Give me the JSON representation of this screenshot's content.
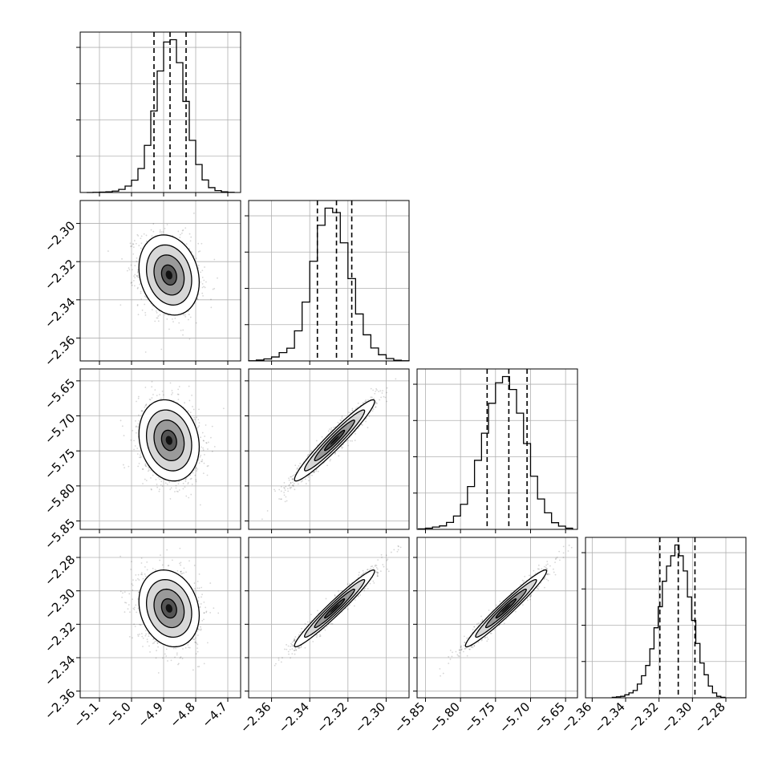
{
  "chart_data": {
    "type": "corner",
    "title": "",
    "variables": [
      {
        "range": [
          -5.16,
          -4.66
        ],
        "ticks": [
          -5.1,
          -5.0,
          -4.9,
          -4.8,
          -4.7
        ],
        "tick_labels": [
          "−5.1",
          "−5.0",
          "−4.9",
          "−4.8",
          "−4.7"
        ],
        "quantiles": [
          -4.93,
          -4.88,
          -4.83
        ],
        "histogram": {
          "edges": [
            -5.14,
            -5.12,
            -5.1,
            -5.08,
            -5.06,
            -5.04,
            -5.02,
            -5.0,
            -4.98,
            -4.96,
            -4.94,
            -4.92,
            -4.9,
            -4.88,
            -4.86,
            -4.84,
            -4.82,
            -4.8,
            -4.78,
            -4.76,
            -4.74,
            -4.72,
            -4.7,
            -4.68
          ],
          "counts": [
            0,
            1,
            2,
            4,
            8,
            18,
            37,
            71,
            138,
            271,
            469,
            699,
            866,
            879,
            747,
            524,
            300,
            161,
            72,
            28,
            11,
            4,
            1
          ]
        }
      },
      {
        "range": [
          -2.372,
          -2.288
        ],
        "ticks": [
          -2.36,
          -2.34,
          -2.32,
          -2.3
        ],
        "tick_labels": [
          "−2.36",
          "−2.34",
          "−2.32",
          "−2.30"
        ],
        "quantiles": [
          -2.336,
          -2.326,
          -2.318
        ],
        "histogram": {
          "edges": [
            -2.372,
            -2.368,
            -2.364,
            -2.36,
            -2.356,
            -2.352,
            -2.348,
            -2.344,
            -2.34,
            -2.336,
            -2.332,
            -2.328,
            -2.324,
            -2.32,
            -2.316,
            -2.312,
            -2.308,
            -2.304,
            -2.3,
            -2.296,
            -2.292,
            -2.288
          ],
          "counts": [
            1,
            4,
            9,
            18,
            38,
            58,
            137,
            268,
            454,
            618,
            696,
            676,
            538,
            375,
            214,
            119,
            59,
            28,
            11,
            3,
            1
          ]
        }
      },
      {
        "range": [
          -5.862,
          -5.633
        ],
        "ticks": [
          -5.85,
          -5.8,
          -5.75,
          -5.7,
          -5.65
        ],
        "tick_labels": [
          "−5.85",
          "−5.80",
          "−5.75",
          "−5.70",
          "−5.65"
        ],
        "quantiles": [
          -5.762,
          -5.731,
          -5.705
        ],
        "histogram": {
          "edges": [
            -5.86,
            -5.85,
            -5.84,
            -5.83,
            -5.82,
            -5.81,
            -5.8,
            -5.79,
            -5.78,
            -5.77,
            -5.76,
            -5.75,
            -5.74,
            -5.73,
            -5.72,
            -5.71,
            -5.7,
            -5.69,
            -5.68,
            -5.67,
            -5.66,
            -5.65,
            -5.64
          ],
          "counts": [
            2,
            5,
            10,
            15,
            30,
            58,
            109,
            186,
            300,
            418,
            548,
            637,
            664,
            608,
            505,
            373,
            231,
            132,
            72,
            29,
            14,
            5
          ]
        }
      },
      {
        "range": [
          -2.364,
          -2.268
        ],
        "ticks": [
          -2.36,
          -2.34,
          -2.32,
          -2.3,
          -2.28
        ],
        "tick_labels": [
          "−2.36",
          "−2.34",
          "−2.32",
          "−2.30",
          "−2.28"
        ],
        "quantiles": [
          -2.3195,
          -2.3085,
          -2.2985
        ],
        "histogram": {
          "edges": [
            -2.348,
            -2.3455,
            -2.343,
            -2.3405,
            -2.338,
            -2.3355,
            -2.333,
            -2.3305,
            -2.328,
            -2.3255,
            -2.323,
            -2.3205,
            -2.318,
            -2.3155,
            -2.313,
            -2.3105,
            -2.308,
            -2.3055,
            -2.303,
            -2.3005,
            -2.298,
            -2.2955,
            -2.293,
            -2.2905,
            -2.288,
            -2.2855,
            -2.283,
            -2.2805
          ],
          "counts": [
            1,
            2,
            3,
            6,
            10,
            15,
            28,
            45,
            66,
            100,
            143,
            186,
            238,
            269,
            290,
            312,
            290,
            259,
            206,
            158,
            111,
            71,
            47,
            24,
            10,
            3,
            1
          ]
        }
      }
    ],
    "pairs": [
      {
        "row": 1,
        "col": 0,
        "mean": [
          -4.883,
          -2.327
        ],
        "sd": [
          0.047,
          0.0105
        ],
        "rho": -0.18
      },
      {
        "row": 2,
        "col": 0,
        "mean": [
          -4.883,
          -5.735
        ],
        "sd": [
          0.047,
          0.029
        ],
        "rho": -0.16
      },
      {
        "row": 2,
        "col": 1,
        "mean": [
          -2.327,
          -5.735
        ],
        "sd": [
          0.0105,
          0.029
        ],
        "rho": 0.96
      },
      {
        "row": 3,
        "col": 0,
        "mean": [
          -4.883,
          -2.3105
        ],
        "sd": [
          0.047,
          0.0115
        ],
        "rho": -0.18
      },
      {
        "row": 3,
        "col": 1,
        "mean": [
          -2.327,
          -2.3105
        ],
        "sd": [
          0.0105,
          0.0115
        ],
        "rho": 0.97
      },
      {
        "row": 3,
        "col": 2,
        "mean": [
          -5.735,
          -2.3105
        ],
        "sd": [
          0.029,
          0.0115
        ],
        "rho": 0.97
      }
    ],
    "contour_levels_sigma": [
      0.5,
      1.0,
      1.5,
      2.0
    ],
    "grid": true,
    "colors": {
      "axis": "#000000",
      "grid": "#b0b0b0",
      "points": "#000000",
      "line": "#000000"
    }
  }
}
